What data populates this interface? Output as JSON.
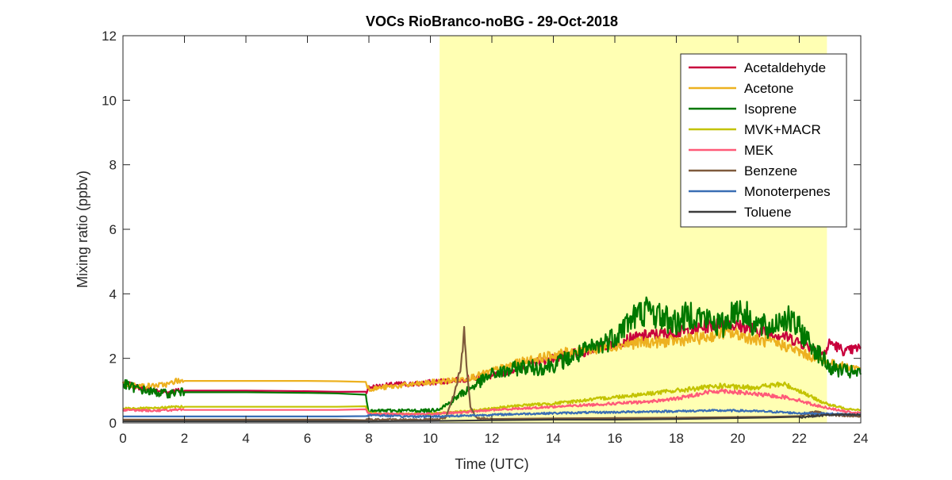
{
  "chart_data": {
    "type": "line",
    "title": "VOCs RioBranco-noBG - 29-Oct-2018",
    "xlabel": "Time (UTC)",
    "ylabel": "Mixing ratio (ppbv)",
    "xlim": [
      0,
      24
    ],
    "ylim": [
      0,
      12
    ],
    "xticks": [
      0,
      2,
      4,
      6,
      8,
      10,
      12,
      14,
      16,
      18,
      20,
      22,
      24
    ],
    "yticks": [
      0,
      2,
      4,
      6,
      8,
      10,
      12
    ],
    "daytime_shading": {
      "x_start": 10.3,
      "x_end": 22.9,
      "color": "#ffffb3"
    },
    "legend": {
      "position": "top-right"
    },
    "grid": false,
    "series": [
      {
        "name": "Acetaldehyde",
        "color": "#c8003c",
        "x": [
          0,
          0.5,
          1,
          1.5,
          1.7,
          2,
          4,
          6,
          7.9,
          8.0,
          8.5,
          9,
          9.5,
          10,
          10.5,
          11,
          11.5,
          12,
          12.5,
          13,
          13.5,
          14,
          14.5,
          15,
          15.5,
          16,
          16.5,
          17,
          17.5,
          18,
          18.5,
          19,
          19.5,
          20,
          20.5,
          21,
          21.5,
          22,
          22.5,
          22.8,
          23,
          23.5,
          24
        ],
        "y": [
          1.25,
          1.1,
          1.0,
          0.95,
          1.0,
          1.0,
          1.0,
          0.98,
          0.95,
          1.1,
          1.15,
          1.2,
          1.2,
          1.25,
          1.3,
          1.35,
          1.4,
          1.45,
          1.6,
          1.75,
          1.9,
          2.0,
          2.1,
          2.2,
          2.35,
          2.5,
          2.6,
          2.7,
          2.75,
          2.8,
          2.85,
          3.0,
          3.1,
          3.0,
          2.9,
          2.8,
          2.7,
          2.5,
          2.3,
          2.1,
          2.5,
          2.2,
          2.35
        ]
      },
      {
        "name": "Acetone",
        "color": "#edb120",
        "x": [
          0,
          0.5,
          1,
          1.5,
          1.7,
          2,
          4,
          6,
          7.9,
          8.0,
          8.5,
          9,
          9.5,
          10,
          10.5,
          11,
          11.5,
          12,
          12.5,
          13,
          13.5,
          14,
          14.5,
          15,
          15.5,
          16,
          16.5,
          17,
          17.5,
          18,
          18.5,
          19,
          19.5,
          20,
          20.5,
          21,
          21.5,
          22,
          22.5,
          23,
          23.5,
          24
        ],
        "y": [
          1.2,
          1.15,
          1.15,
          1.2,
          1.3,
          1.3,
          1.3,
          1.3,
          1.28,
          1.05,
          1.1,
          1.15,
          1.2,
          1.25,
          1.3,
          1.35,
          1.45,
          1.6,
          1.75,
          1.9,
          2.0,
          2.1,
          2.2,
          2.25,
          2.3,
          2.4,
          2.45,
          2.5,
          2.5,
          2.55,
          2.6,
          2.65,
          2.8,
          2.75,
          2.6,
          2.5,
          2.4,
          2.2,
          2.0,
          1.85,
          1.75,
          1.7
        ]
      },
      {
        "name": "Isoprene",
        "color": "#007800",
        "x": [
          0,
          0.5,
          1,
          1.5,
          1.7,
          2,
          4,
          6,
          7.9,
          8.0,
          8.5,
          9,
          9.5,
          10,
          10.3,
          10.6,
          11,
          11.5,
          12,
          12.5,
          13,
          13.5,
          14,
          14.5,
          15,
          15.5,
          16,
          16.5,
          17,
          17.5,
          18,
          18.5,
          19,
          19.5,
          20,
          20.5,
          21,
          21.5,
          22,
          22.5,
          23,
          23.5,
          24
        ],
        "y": [
          1.2,
          1.05,
          0.95,
          0.9,
          0.95,
          0.95,
          0.95,
          0.93,
          0.9,
          0.35,
          0.38,
          0.38,
          0.38,
          0.38,
          0.45,
          0.6,
          0.9,
          1.2,
          1.5,
          1.6,
          1.75,
          1.7,
          1.8,
          2.0,
          2.2,
          2.4,
          2.7,
          3.2,
          3.5,
          3.3,
          3.1,
          3.4,
          3.2,
          3.0,
          3.6,
          3.1,
          2.9,
          3.3,
          2.9,
          2.3,
          1.7,
          1.6,
          1.5
        ]
      },
      {
        "name": "MVK+MACR",
        "color": "#c3c300",
        "x": [
          0,
          1,
          1.7,
          2,
          4,
          6,
          7.9,
          8.0,
          9,
          10,
          11,
          12,
          13,
          14,
          15,
          16,
          17,
          18,
          18.5,
          19,
          19.5,
          20,
          20.5,
          21,
          21.5,
          22,
          22.5,
          23,
          23.5,
          24
        ],
        "y": [
          0.45,
          0.45,
          0.5,
          0.5,
          0.5,
          0.5,
          0.5,
          0.3,
          0.28,
          0.28,
          0.35,
          0.45,
          0.55,
          0.6,
          0.7,
          0.8,
          0.9,
          1.0,
          1.05,
          1.1,
          1.15,
          1.1,
          1.1,
          1.15,
          1.2,
          1.0,
          0.75,
          0.55,
          0.45,
          0.4
        ]
      },
      {
        "name": "MEK",
        "color": "#ff5a78",
        "x": [
          0,
          1,
          1.7,
          2,
          4,
          6,
          7.9,
          8.0,
          9,
          10,
          11,
          12,
          13,
          14,
          15,
          16,
          17,
          18,
          18.5,
          19,
          19.5,
          20,
          20.5,
          21,
          21.5,
          22,
          22.5,
          23,
          23.5,
          24
        ],
        "y": [
          0.4,
          0.38,
          0.4,
          0.4,
          0.4,
          0.4,
          0.4,
          0.28,
          0.27,
          0.28,
          0.32,
          0.4,
          0.45,
          0.5,
          0.55,
          0.6,
          0.65,
          0.75,
          0.85,
          0.95,
          1.0,
          0.95,
          0.9,
          0.85,
          0.8,
          0.7,
          0.55,
          0.45,
          0.35,
          0.3
        ]
      },
      {
        "name": "Benzene",
        "color": "#7e5a3c",
        "x": [
          0,
          2,
          4,
          6,
          7.9,
          8.0,
          9,
          10,
          10.5,
          10.8,
          11,
          11.1,
          11.2,
          11.3,
          11.5,
          12,
          14,
          16,
          18,
          20,
          22,
          22.5,
          23,
          24
        ],
        "y": [
          0.1,
          0.1,
          0.1,
          0.1,
          0.1,
          0.1,
          0.1,
          0.1,
          0.15,
          1.0,
          1.8,
          2.8,
          1.5,
          0.5,
          0.15,
          0.12,
          0.14,
          0.15,
          0.16,
          0.18,
          0.2,
          0.35,
          0.25,
          0.2
        ]
      },
      {
        "name": "Monoterpenes",
        "color": "#3a6eb4",
        "x": [
          0,
          2,
          4,
          6,
          7.9,
          8.0,
          9,
          10,
          11,
          12,
          13,
          14,
          15,
          16,
          17,
          18,
          19,
          20,
          21,
          22,
          23,
          24
        ],
        "y": [
          0.2,
          0.2,
          0.2,
          0.2,
          0.2,
          0.25,
          0.2,
          0.2,
          0.22,
          0.25,
          0.28,
          0.3,
          0.32,
          0.33,
          0.35,
          0.36,
          0.38,
          0.38,
          0.35,
          0.3,
          0.28,
          0.25
        ]
      },
      {
        "name": "Toluene",
        "color": "#3c3c3c",
        "x": [
          0,
          2,
          4,
          6,
          8,
          10,
          12,
          14,
          16,
          18,
          20,
          22,
          23,
          24
        ],
        "y": [
          0.05,
          0.05,
          0.05,
          0.05,
          0.05,
          0.06,
          0.08,
          0.1,
          0.1,
          0.12,
          0.15,
          0.18,
          0.25,
          0.25
        ]
      }
    ]
  }
}
